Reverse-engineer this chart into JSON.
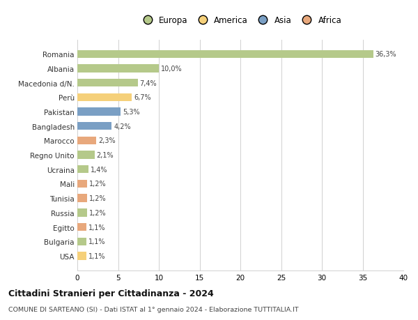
{
  "categories": [
    "Romania",
    "Albania",
    "Macedonia d/N.",
    "Perù",
    "Pakistan",
    "Bangladesh",
    "Marocco",
    "Regno Unito",
    "Ucraina",
    "Mali",
    "Tunisia",
    "Russia",
    "Egitto",
    "Bulgaria",
    "USA"
  ],
  "values": [
    36.3,
    10.0,
    7.4,
    6.7,
    5.3,
    4.2,
    2.3,
    2.1,
    1.4,
    1.2,
    1.2,
    1.2,
    1.1,
    1.1,
    1.1
  ],
  "labels": [
    "36,3%",
    "10,0%",
    "7,4%",
    "6,7%",
    "5,3%",
    "4,2%",
    "2,3%",
    "2,1%",
    "1,4%",
    "1,2%",
    "1,2%",
    "1,2%",
    "1,1%",
    "1,1%",
    "1,1%"
  ],
  "colors": [
    "#b5c98a",
    "#b5c98a",
    "#b5c98a",
    "#f5d07a",
    "#7a9fc4",
    "#7a9fc4",
    "#e8a87c",
    "#b5c98a",
    "#b5c98a",
    "#e8a87c",
    "#e8a87c",
    "#b5c98a",
    "#e8a87c",
    "#b5c98a",
    "#f5d07a"
  ],
  "legend_labels": [
    "Europa",
    "America",
    "Asia",
    "Africa"
  ],
  "legend_colors": [
    "#b5c98a",
    "#f5d07a",
    "#7a9fc4",
    "#e8a87c"
  ],
  "title": "Cittadini Stranieri per Cittadinanza - 2024",
  "subtitle": "COMUNE DI SARTEANO (SI) - Dati ISTAT al 1° gennaio 2024 - Elaborazione TUTTITALIA.IT",
  "xlim": [
    0,
    40
  ],
  "xticks": [
    0,
    5,
    10,
    15,
    20,
    25,
    30,
    35,
    40
  ],
  "background_color": "#ffffff",
  "grid_color": "#d0d0d0",
  "bar_height": 0.55
}
